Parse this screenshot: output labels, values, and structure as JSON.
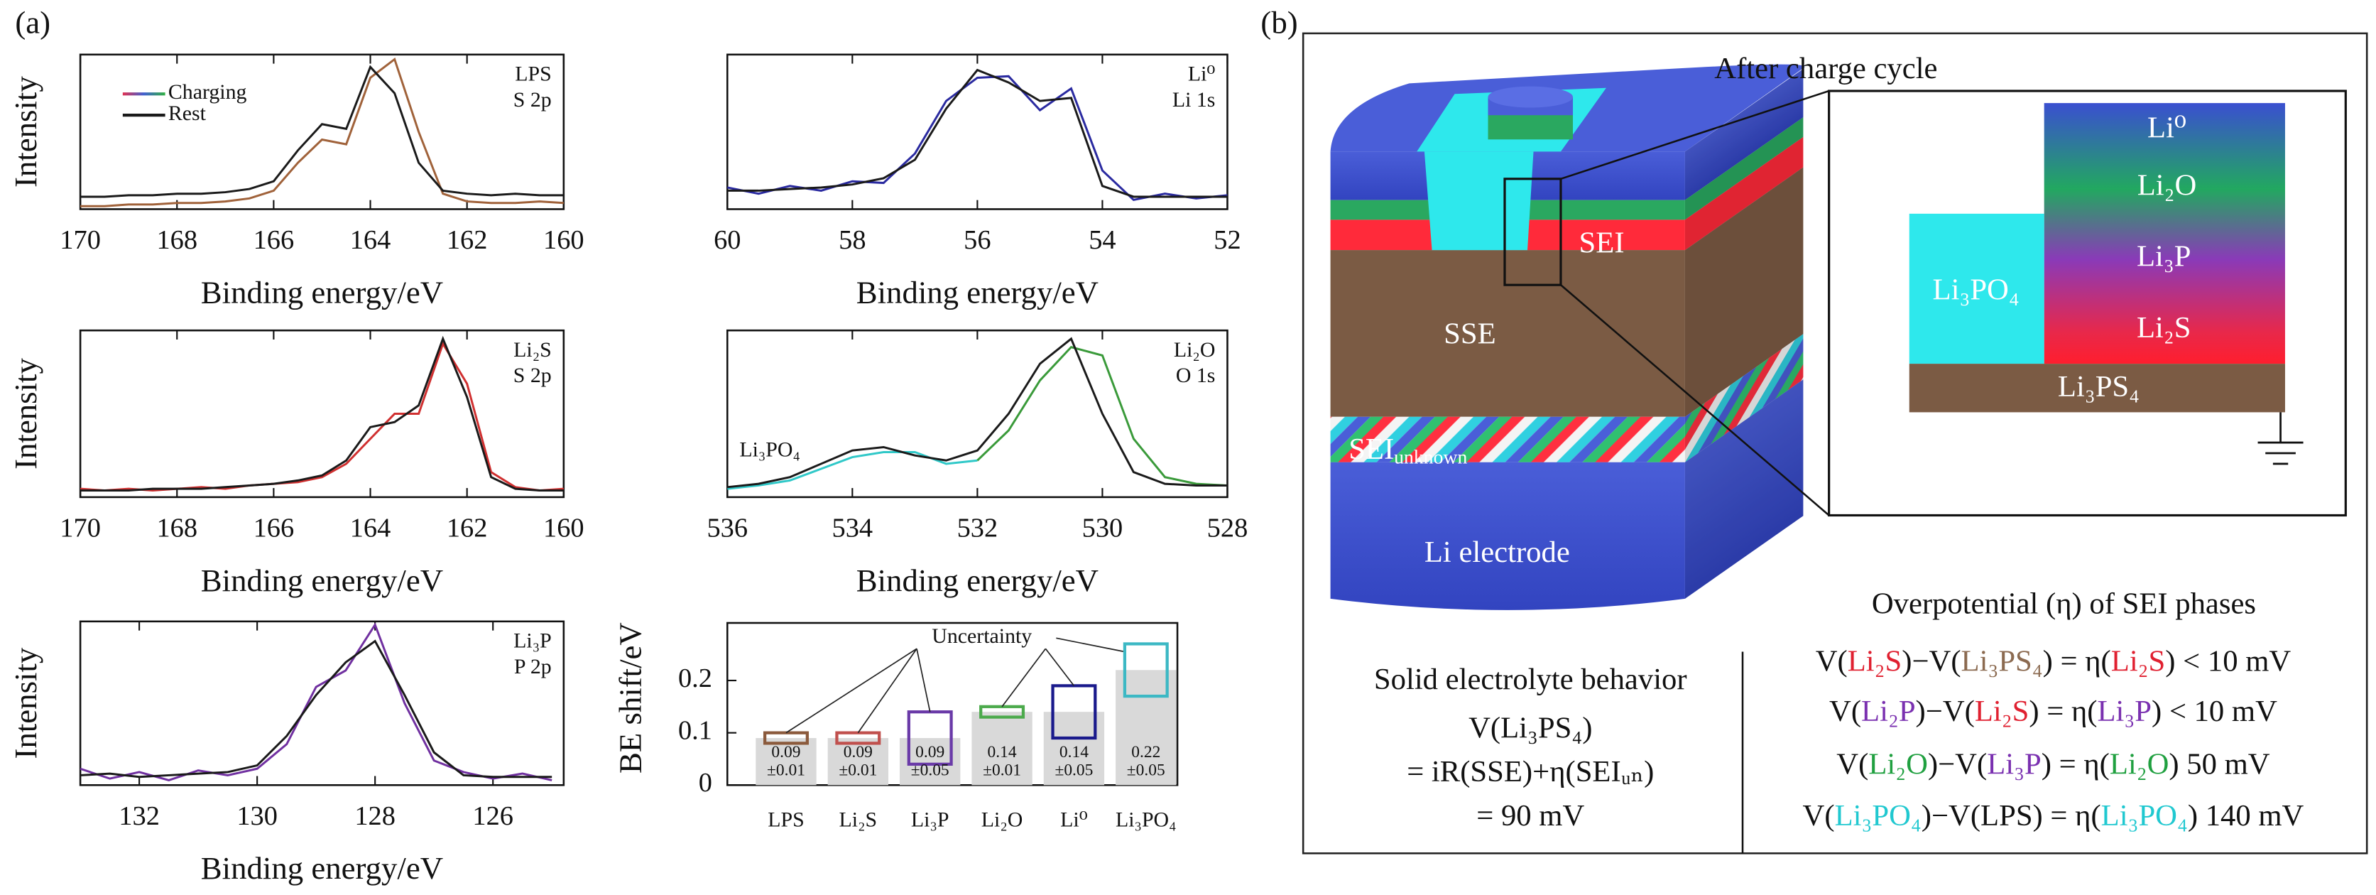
{
  "panel_labels": [
    "(a)",
    "(b)"
  ],
  "chart_data": [
    {
      "type": "line",
      "labels": [
        "LPS",
        "S 2p"
      ],
      "ylabel": "Intensity",
      "xlabel": "Binding energy/eV",
      "xlim": [
        170,
        160
      ],
      "xticks": [
        170,
        168,
        166,
        164,
        162,
        160
      ],
      "ylim": [
        0,
        1
      ],
      "legend": "upper left",
      "legend_gradient": [
        "#e03050",
        "#4060d0",
        "#30b040"
      ],
      "x": [
        170,
        169.5,
        169,
        168.5,
        168,
        167.5,
        167,
        166.5,
        166,
        165.5,
        165,
        164.5,
        164,
        163.5,
        163,
        162.5,
        162,
        161.5,
        161,
        160.5,
        160
      ],
      "series": [
        {
          "name": "Charging",
          "color": "#a0623a",
          "values": [
            0.02,
            0.02,
            0.03,
            0.03,
            0.04,
            0.04,
            0.05,
            0.07,
            0.12,
            0.3,
            0.45,
            0.42,
            0.85,
            0.97,
            0.5,
            0.1,
            0.05,
            0.04,
            0.04,
            0.05,
            0.04
          ]
        },
        {
          "name": "Rest",
          "color": "#1a1a1a",
          "values": [
            0.08,
            0.08,
            0.09,
            0.09,
            0.1,
            0.1,
            0.11,
            0.13,
            0.18,
            0.38,
            0.55,
            0.52,
            0.92,
            0.75,
            0.3,
            0.12,
            0.1,
            0.09,
            0.1,
            0.09,
            0.09
          ]
        }
      ]
    },
    {
      "type": "line",
      "labels": [
        "Li⁰",
        "Li 1s"
      ],
      "xlabel": "Binding energy/eV",
      "xlim": [
        60,
        52
      ],
      "xticks": [
        60,
        58,
        56,
        54,
        52
      ],
      "ylim": [
        0,
        1
      ],
      "x": [
        60,
        59.5,
        59,
        58.5,
        58,
        57.5,
        57,
        56.5,
        56,
        55.5,
        55,
        54.5,
        54,
        53.5,
        53,
        52.5,
        52
      ],
      "series": [
        {
          "color": "#2a2aa0",
          "values": [
            0.14,
            0.1,
            0.15,
            0.12,
            0.18,
            0.17,
            0.36,
            0.7,
            0.85,
            0.86,
            0.64,
            0.78,
            0.25,
            0.06,
            0.1,
            0.07,
            0.09
          ]
        },
        {
          "color": "#1a1a1a",
          "values": [
            0.12,
            0.12,
            0.13,
            0.14,
            0.16,
            0.2,
            0.32,
            0.65,
            0.9,
            0.82,
            0.7,
            0.72,
            0.15,
            0.08,
            0.08,
            0.08,
            0.08
          ]
        }
      ]
    },
    {
      "type": "line",
      "labels": [
        "Li₂S",
        "S 2p"
      ],
      "ylabel": "Intensity",
      "xlabel": "Binding energy/eV",
      "xlim": [
        170,
        160
      ],
      "xticks": [
        170,
        168,
        166,
        164,
        162,
        160
      ],
      "ylim": [
        0,
        1
      ],
      "x": [
        170,
        169.5,
        169,
        168.5,
        168,
        167.5,
        167,
        166.5,
        166,
        165.5,
        165,
        164.5,
        164,
        163.5,
        163,
        162.5,
        162,
        161.5,
        161,
        160.5,
        160
      ],
      "series": [
        {
          "color": "#d03030",
          "values": [
            0.05,
            0.04,
            0.05,
            0.04,
            0.05,
            0.06,
            0.05,
            0.07,
            0.08,
            0.09,
            0.12,
            0.2,
            0.35,
            0.5,
            0.5,
            0.92,
            0.68,
            0.15,
            0.06,
            0.04,
            0.05
          ]
        },
        {
          "color": "#1a1a1a",
          "values": [
            0.04,
            0.04,
            0.04,
            0.05,
            0.05,
            0.05,
            0.06,
            0.07,
            0.08,
            0.1,
            0.13,
            0.22,
            0.42,
            0.45,
            0.55,
            0.95,
            0.6,
            0.12,
            0.05,
            0.04,
            0.04
          ]
        }
      ]
    },
    {
      "type": "line",
      "labels": [
        "Li₂O",
        "O 1s"
      ],
      "annotation": "Li₃PO₄",
      "xlabel": "Binding energy/eV",
      "xlim": [
        536,
        528
      ],
      "xticks": [
        536,
        534,
        532,
        530,
        528
      ],
      "ylim": [
        0,
        1
      ],
      "x": [
        536,
        535.5,
        535,
        534.5,
        534,
        533.5,
        533,
        532.5,
        532,
        531.5,
        531,
        530.5,
        530,
        529.5,
        529,
        528.5,
        528
      ],
      "series": [
        {
          "color": "#30c8c8",
          "values": [
            0.05,
            0.07,
            0.1,
            0.17,
            0.24,
            0.27,
            0.27,
            0.2,
            0.22,
            null,
            null,
            null,
            null,
            null,
            null,
            null,
            null
          ]
        },
        {
          "color": "#3a9a3a",
          "values": [
            null,
            null,
            null,
            null,
            null,
            null,
            null,
            null,
            0.22,
            0.4,
            0.7,
            0.9,
            0.85,
            0.35,
            0.12,
            0.08,
            0.07
          ]
        },
        {
          "color": "#1a1a1a",
          "values": [
            0.06,
            0.08,
            0.12,
            0.2,
            0.28,
            0.3,
            0.25,
            0.22,
            0.28,
            0.5,
            0.8,
            0.95,
            0.5,
            0.15,
            0.08,
            0.07,
            0.07
          ]
        }
      ]
    },
    {
      "type": "line",
      "labels": [
        "Li₃P",
        "P 2p"
      ],
      "ylabel": "Intensity",
      "xlabel": "Binding energy/eV",
      "xlim": [
        133,
        124.8
      ],
      "xticks": [
        132,
        130,
        128,
        126
      ],
      "ylim": [
        0,
        1
      ],
      "x": [
        133,
        132.5,
        132,
        131.5,
        131,
        130.5,
        130,
        129.5,
        129,
        128.5,
        128,
        127.5,
        127,
        126.5,
        126,
        125.5,
        125
      ],
      "series": [
        {
          "color": "#7030a0",
          "values": [
            0.1,
            0.04,
            0.08,
            0.03,
            0.09,
            0.06,
            0.1,
            0.25,
            0.6,
            0.7,
            0.98,
            0.5,
            0.15,
            0.08,
            0.04,
            0.07,
            0.03
          ]
        },
        {
          "color": "#1a1a1a",
          "values": [
            0.06,
            0.07,
            0.05,
            0.06,
            0.07,
            0.08,
            0.12,
            0.3,
            0.55,
            0.75,
            0.88,
            0.55,
            0.2,
            0.06,
            0.05,
            0.05,
            0.05
          ]
        }
      ]
    },
    {
      "type": "bar",
      "ylabel": "BE shift/eV",
      "annotation": "Uncertainty",
      "categories": [
        "LPS",
        "Li₂S",
        "Li₃P",
        "Li₂O",
        "Li⁰",
        "Li₃PO₄"
      ],
      "values": [
        0.09,
        0.09,
        0.09,
        0.14,
        0.14,
        0.22
      ],
      "errors": [
        0.01,
        0.01,
        0.05,
        0.01,
        0.05,
        0.05
      ],
      "error_labels": [
        "±0.01",
        "±0.01",
        "±0.05",
        "±0.01",
        "±0.05",
        "±0.05"
      ],
      "colors": [
        "#8b5a3c",
        "#c0504d",
        "#6a3aa8",
        "#4caa4c",
        "#1a1a8c",
        "#3cb8c4"
      ],
      "bar_color": "#d9d9d9",
      "ylim": [
        0,
        0.31
      ],
      "yticks": [
        0,
        0.1,
        0.2
      ]
    }
  ],
  "diagram": {
    "title": "After charge cycle",
    "block_labels": {
      "sei": "SEI",
      "sse": "SSE",
      "sei_unknown": {
        "main": "SEI",
        "sub": "unknown"
      },
      "electrode": "Li electrode"
    },
    "inset": {
      "li0": "Li⁰",
      "li2o": "Li₂O",
      "li3p": "Li₃P",
      "li2s": "Li₂S",
      "li3po4": "Li₃PO₄",
      "li3ps4": "Li₃PS₄"
    },
    "behavior": {
      "title": "Solid electrolyte behavior",
      "lines": [
        "V(Li₃PS₄)",
        "= iR(SSE)+η(SEIᵤₙ)",
        "= 90 mV"
      ]
    },
    "overpotential": {
      "title": "Overpotential (η) of SEI phases",
      "equations": [
        [
          {
            "text": "V("
          },
          {
            "text": "Li₂S",
            "color": "#e02030"
          },
          {
            "text": ")−V("
          },
          {
            "text": "Li₃PS₄",
            "color": "#8b6a50"
          },
          {
            "text": ") = η("
          },
          {
            "text": "Li₂S",
            "color": "#e02030"
          },
          {
            "text": ") < 10 mV"
          }
        ],
        [
          {
            "text": "V("
          },
          {
            "text": "Li₂P",
            "color": "#7a30b0"
          },
          {
            "text": ")−V("
          },
          {
            "text": "Li₂S",
            "color": "#e02030"
          },
          {
            "text": ") = η("
          },
          {
            "text": "Li₃P",
            "color": "#7a30b0"
          },
          {
            "text": ") < 10 mV"
          }
        ],
        [
          {
            "text": "V("
          },
          {
            "text": "Li₂O",
            "color": "#20a040"
          },
          {
            "text": ")−V("
          },
          {
            "text": "Li₃P",
            "color": "#7a30b0"
          },
          {
            "text": ") = η("
          },
          {
            "text": "Li₂O",
            "color": "#20a040"
          },
          {
            "text": ") 50 mV"
          }
        ],
        [
          {
            "text": "V("
          },
          {
            "text": "Li₃PO₄",
            "color": "#20c8d0"
          },
          {
            "text": ")−V(LPS) = η("
          },
          {
            "text": "Li₃PO₄",
            "color": "#20c8d0"
          },
          {
            "text": ") 140 mV"
          }
        ]
      ]
    }
  }
}
